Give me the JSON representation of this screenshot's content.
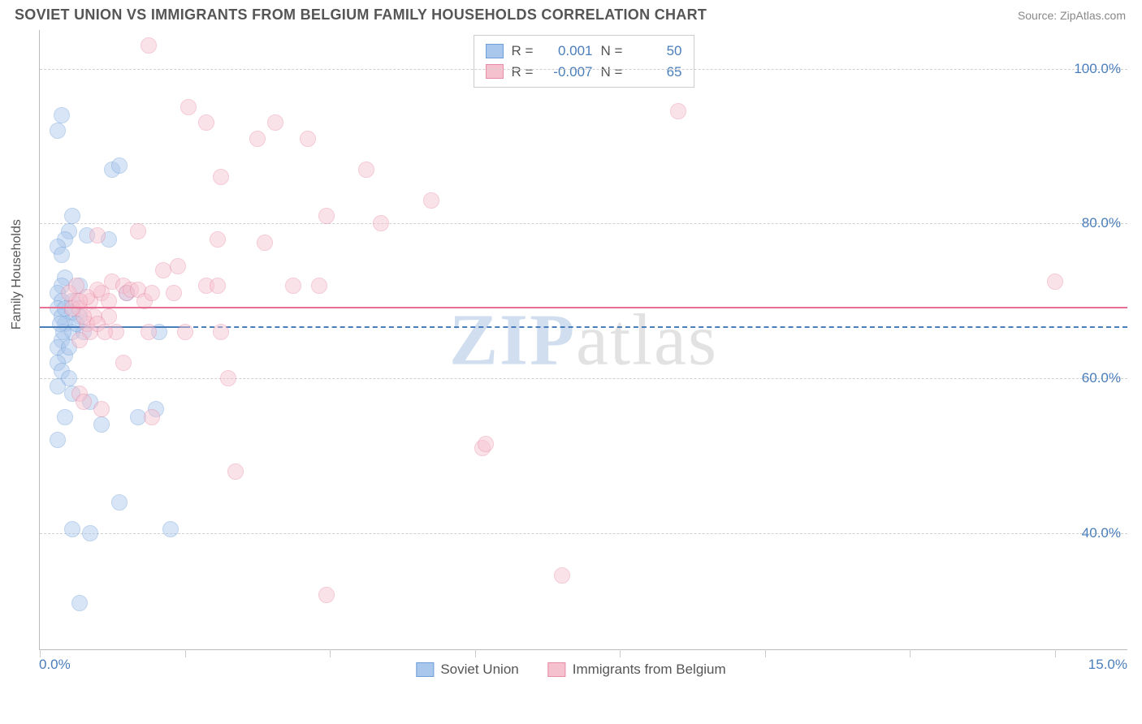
{
  "header": {
    "title": "SOVIET UNION VS IMMIGRANTS FROM BELGIUM FAMILY HOUSEHOLDS CORRELATION CHART",
    "source": "Source: ZipAtlas.com"
  },
  "chart": {
    "type": "scatter",
    "y_axis_title": "Family Households",
    "xlim": [
      0,
      15
    ],
    "ylim": [
      25,
      105
    ],
    "x_tick_start": "0.0%",
    "x_tick_end": "15.0%",
    "x_ticks_pct": [
      0,
      2,
      4,
      6,
      8,
      10,
      12,
      14
    ],
    "y_gridlines": [
      {
        "val": 40,
        "label": "40.0%"
      },
      {
        "val": 60,
        "label": "60.0%"
      },
      {
        "val": 80,
        "label": "80.0%"
      },
      {
        "val": 100,
        "label": "100.0%"
      }
    ],
    "axis_label_color": "#4a7ebb",
    "grid_color": "#d0d0d0",
    "background_color": "#ffffff",
    "marker_radius": 10,
    "marker_opacity": 0.45,
    "series": [
      {
        "name": "Soviet Union",
        "fill": "#a9c6ec",
        "stroke": "#6f9fd8",
        "R": "0.001",
        "N": "50",
        "trend": {
          "y0": 66.5,
          "y1": 67.0,
          "x0": 0,
          "x1": 2.0,
          "color": "#4a7ebb",
          "dash_after": true
        },
        "points": [
          [
            0.3,
            94
          ],
          [
            0.25,
            92
          ],
          [
            0.4,
            79
          ],
          [
            0.35,
            78
          ],
          [
            0.25,
            77
          ],
          [
            0.3,
            76
          ],
          [
            0.45,
            81
          ],
          [
            0.35,
            73
          ],
          [
            0.3,
            72
          ],
          [
            0.25,
            71
          ],
          [
            0.3,
            70
          ],
          [
            0.45,
            70
          ],
          [
            0.25,
            69
          ],
          [
            0.3,
            68
          ],
          [
            0.35,
            67
          ],
          [
            0.45,
            66
          ],
          [
            0.3,
            65
          ],
          [
            0.25,
            64
          ],
          [
            0.35,
            63
          ],
          [
            0.25,
            62
          ],
          [
            0.3,
            61
          ],
          [
            0.4,
            60
          ],
          [
            0.25,
            59
          ],
          [
            0.45,
            58
          ],
          [
            0.7,
            57
          ],
          [
            0.35,
            55
          ],
          [
            0.25,
            52
          ],
          [
            0.55,
            31
          ],
          [
            0.7,
            40
          ],
          [
            0.45,
            40.5
          ],
          [
            0.85,
            54
          ],
          [
            1.0,
            87
          ],
          [
            1.1,
            87.5
          ],
          [
            1.1,
            44
          ],
          [
            1.35,
            55
          ],
          [
            1.6,
            56
          ],
          [
            1.65,
            66
          ],
          [
            1.8,
            40.5
          ],
          [
            1.2,
            71
          ],
          [
            0.55,
            68
          ],
          [
            0.95,
            78
          ],
          [
            0.6,
            66
          ],
          [
            0.45,
            68.5
          ],
          [
            0.55,
            72
          ],
          [
            0.65,
            78.5
          ],
          [
            0.5,
            67
          ],
          [
            0.4,
            64
          ],
          [
            0.32,
            66
          ],
          [
            0.28,
            67
          ],
          [
            0.35,
            69
          ]
        ]
      },
      {
        "name": "Immigrants from Belgium",
        "fill": "#f6c1cf",
        "stroke": "#e88ba6",
        "R": "-0.007",
        "N": "65",
        "trend": {
          "y0": 69.5,
          "y1": 69.0,
          "x0": 0,
          "x1": 15,
          "color": "#e66f93",
          "dash_after": false
        },
        "points": [
          [
            1.5,
            103
          ],
          [
            2.05,
            95
          ],
          [
            1.35,
            79
          ],
          [
            1.7,
            74
          ],
          [
            2.3,
            93
          ],
          [
            2.45,
            78
          ],
          [
            2.5,
            86
          ],
          [
            2.6,
            60
          ],
          [
            2.7,
            48
          ],
          [
            3.0,
            91
          ],
          [
            3.1,
            77.5
          ],
          [
            3.25,
            93
          ],
          [
            3.5,
            72
          ],
          [
            3.7,
            91
          ],
          [
            3.85,
            72
          ],
          [
            3.95,
            81
          ],
          [
            3.95,
            32
          ],
          [
            4.5,
            87
          ],
          [
            4.7,
            80
          ],
          [
            5.4,
            83
          ],
          [
            6.1,
            51
          ],
          [
            6.15,
            51.5
          ],
          [
            7.2,
            34.5
          ],
          [
            8.8,
            94.5
          ],
          [
            14.0,
            72.5
          ],
          [
            0.55,
            58
          ],
          [
            0.6,
            57
          ],
          [
            0.85,
            56
          ],
          [
            0.85,
            71
          ],
          [
            0.7,
            70
          ],
          [
            0.8,
            71.5
          ],
          [
            0.95,
            70
          ],
          [
            0.95,
            68
          ],
          [
            1.0,
            72.5
          ],
          [
            1.05,
            66
          ],
          [
            1.15,
            72
          ],
          [
            1.15,
            62
          ],
          [
            1.2,
            71
          ],
          [
            1.25,
            71.5
          ],
          [
            1.35,
            71.5
          ],
          [
            1.45,
            70
          ],
          [
            1.5,
            66
          ],
          [
            1.55,
            71
          ],
          [
            1.55,
            55
          ],
          [
            1.85,
            71
          ],
          [
            1.9,
            74.5
          ],
          [
            2.0,
            66
          ],
          [
            2.3,
            72
          ],
          [
            2.45,
            72
          ],
          [
            2.5,
            66
          ],
          [
            0.8,
            78.5
          ],
          [
            0.5,
            70
          ],
          [
            0.55,
            69
          ],
          [
            0.65,
            70.5
          ],
          [
            0.75,
            68
          ],
          [
            0.65,
            67
          ],
          [
            0.7,
            66
          ],
          [
            0.55,
            65
          ],
          [
            0.6,
            68
          ],
          [
            0.4,
            71
          ],
          [
            0.5,
            72
          ],
          [
            0.45,
            69
          ],
          [
            0.55,
            70
          ],
          [
            0.8,
            67
          ],
          [
            0.9,
            66
          ]
        ]
      }
    ],
    "legend_top": {
      "R_label": "R =",
      "N_label": "N ="
    },
    "legend_bottom": [
      {
        "label": "Soviet Union",
        "fill": "#a9c6ec",
        "stroke": "#6f9fd8"
      },
      {
        "label": "Immigrants from Belgium",
        "fill": "#f6c1cf",
        "stroke": "#e88ba6"
      }
    ],
    "watermark": {
      "z": "ZIP",
      "rest": "atlas"
    }
  }
}
